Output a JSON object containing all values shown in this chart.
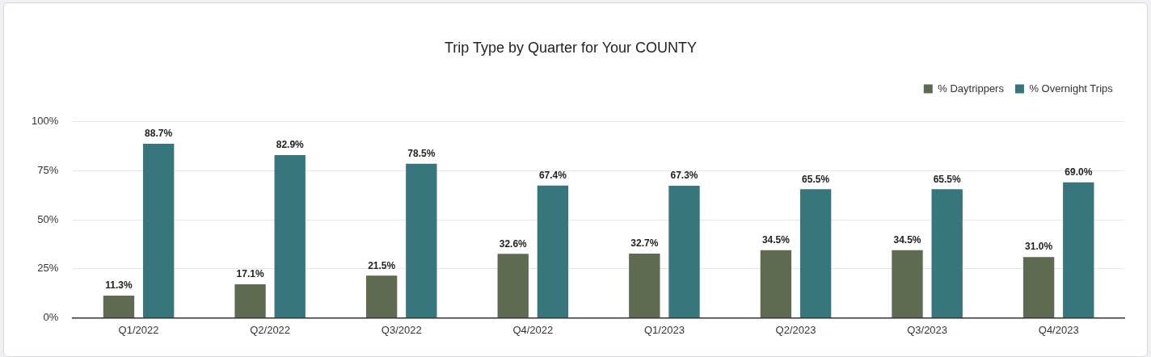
{
  "chart_data": {
    "type": "bar",
    "title": "Trip Type by Quarter for Your COUNTY",
    "categories": [
      "Q1/2022",
      "Q2/2022",
      "Q3/2022",
      "Q4/2022",
      "Q1/2023",
      "Q2/2023",
      "Q3/2023",
      "Q4/2023"
    ],
    "series": [
      {
        "name": "% Daytrippers",
        "color": "#5e6b50",
        "values": [
          11.3,
          17.1,
          21.5,
          32.6,
          32.7,
          34.5,
          34.5,
          31.0
        ],
        "value_labels": [
          "11.3%",
          "17.1%",
          "21.5%",
          "32.6%",
          "32.7%",
          "34.5%",
          "34.5%",
          "31.0%"
        ]
      },
      {
        "name": "% Overnight Trips",
        "color": "#37767d",
        "values": [
          88.7,
          82.9,
          78.5,
          67.4,
          67.3,
          65.5,
          65.5,
          69.0
        ],
        "value_labels": [
          "88.7%",
          "82.9%",
          "78.5%",
          "67.4%",
          "67.3%",
          "65.5%",
          "65.5%",
          "69.0%"
        ]
      }
    ],
    "ylim": [
      0,
      100
    ],
    "yticks": [
      {
        "value": 0,
        "label": "0%"
      },
      {
        "value": 25,
        "label": "25%"
      },
      {
        "value": 50,
        "label": "50%"
      },
      {
        "value": 75,
        "label": "75%"
      },
      {
        "value": 100,
        "label": "100%"
      }
    ],
    "grid": "y",
    "legend": "top right"
  }
}
